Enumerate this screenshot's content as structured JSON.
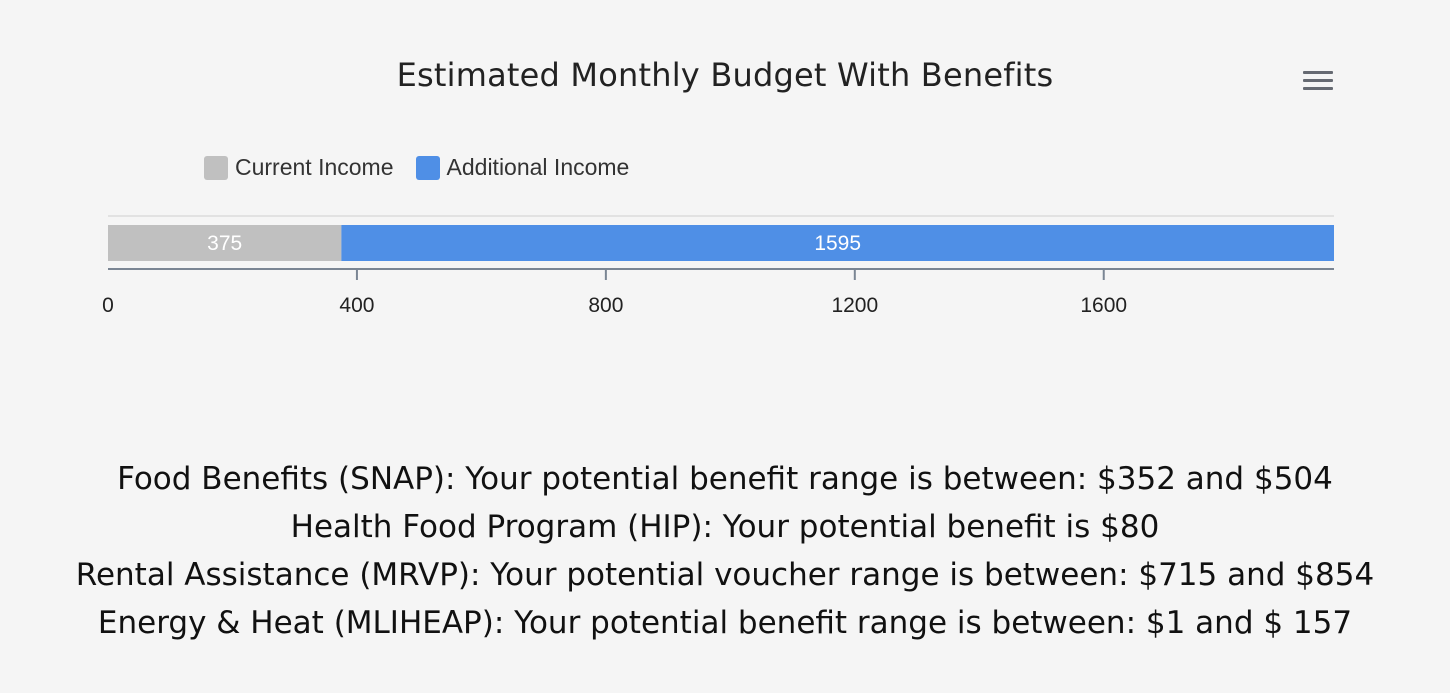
{
  "chart_data": {
    "type": "bar",
    "orientation": "horizontal",
    "stacked": true,
    "title": "Estimated Monthly Budget With Benefits",
    "xlim": [
      0,
      1970
    ],
    "x_ticks": [
      "0",
      "400",
      "800",
      "1200",
      "1600"
    ],
    "x_tick_values": [
      0,
      400,
      800,
      1200,
      1600
    ],
    "grid": false,
    "legend_position": "top-left",
    "series": [
      {
        "name": "Current Income",
        "values": [
          375
        ],
        "color": "#c0c0c0",
        "data_label": "375"
      },
      {
        "name": "Additional Income",
        "values": [
          1595
        ],
        "color": "#4f8fe6",
        "data_label": "1595"
      }
    ]
  },
  "benefits": [
    "Food Benefits (SNAP): Your potential benefit range is between: $352 and $504",
    "Health Food Program (HIP): Your potential benefit is $80",
    "Rental Assistance (MRVP): Your potential voucher range is between: $715 and $854",
    "Energy & Heat (MLIHEAP): Your potential benefit range is between: $1 and $ 157"
  ],
  "menu_icon": "hamburger-menu-icon",
  "colors": {
    "background": "#f5f5f5",
    "axis": "#7a8593",
    "gridline": "#e2e2e2"
  }
}
